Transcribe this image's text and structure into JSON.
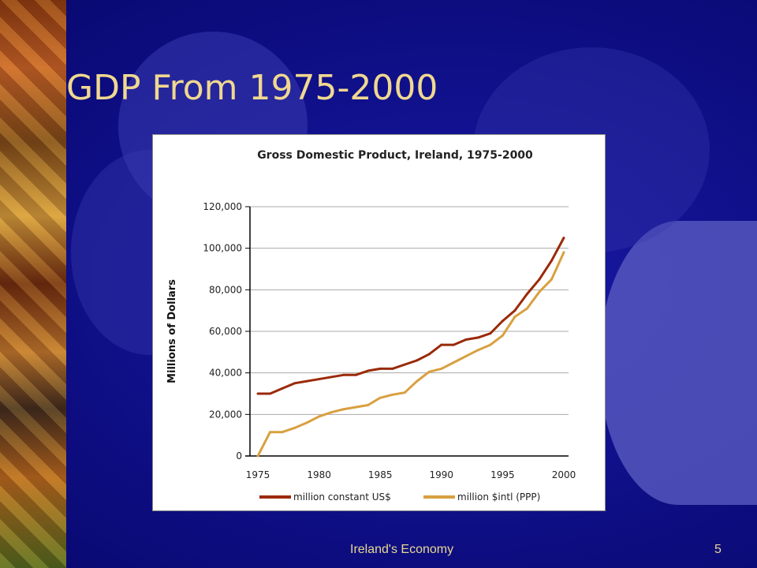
{
  "slide": {
    "title": "GDP From 1975-2000",
    "footer": "Ireland's Economy",
    "page_number": "5"
  },
  "colors": {
    "series1": "#9a2a08",
    "series2": "#d8a040",
    "title": "#f0d890"
  },
  "chart_data": {
    "type": "line",
    "title": "Gross Domestic Product, Ireland, 1975-2000",
    "xlabel": "",
    "ylabel": "Millions of Dollars",
    "xlim": [
      1975,
      2000
    ],
    "ylim": [
      0,
      120000
    ],
    "xticks": [
      "1975",
      "1980",
      "1985",
      "1990",
      "1995",
      "2000"
    ],
    "yticks": [
      "0",
      "20,000",
      "40,000",
      "60,000",
      "80,000",
      "100,000",
      "120,000"
    ],
    "grid": true,
    "legend_position": "bottom",
    "x": [
      1975,
      1976,
      1977,
      1978,
      1979,
      1980,
      1981,
      1982,
      1983,
      1984,
      1985,
      1986,
      1987,
      1988,
      1989,
      1990,
      1991,
      1992,
      1993,
      1994,
      1995,
      1996,
      1997,
      1998,
      1999,
      2000
    ],
    "series": [
      {
        "name": "million constant US$",
        "values": [
          30000,
          30000,
          32500,
          35000,
          36000,
          37000,
          38000,
          39000,
          39000,
          41000,
          42000,
          42000,
          44000,
          46000,
          49000,
          53500,
          53500,
          56000,
          57000,
          59000,
          65000,
          70000,
          78000,
          85000,
          94000,
          105000
        ]
      },
      {
        "name": "million $intl (PPP)",
        "values": [
          0,
          11500,
          11500,
          13500,
          16000,
          19000,
          21000,
          22500,
          23500,
          24500,
          28000,
          29500,
          30500,
          36000,
          40500,
          42000,
          45000,
          48000,
          51000,
          53500,
          58000,
          67000,
          71000,
          79000,
          85000,
          98000
        ]
      }
    ]
  }
}
